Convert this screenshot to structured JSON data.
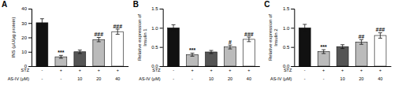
{
  "chart_data": [
    {
      "type": "bar",
      "title": "A",
      "ylabel": "INS (μU/μg protein)",
      "category_levels": [
        "STZ",
        "AS-IV (μM)"
      ],
      "categories": [
        [
          "-",
          "-"
        ],
        [
          "+",
          "-"
        ],
        [
          "+",
          "10"
        ],
        [
          "+",
          "20"
        ],
        [
          "+",
          "40"
        ]
      ],
      "values": [
        30.2,
        6.5,
        10.0,
        18.5,
        24.0
      ],
      "errors": [
        2.8,
        1.0,
        1.2,
        1.5,
        1.8
      ],
      "colors": [
        "#111111",
        "#bbbbbb",
        "#555555",
        "#bbbbbb",
        "#ffffff"
      ],
      "annotations": [
        {
          "text": "***",
          "bar": 1,
          "y": 8.2
        },
        {
          "text": "###",
          "bar": 3,
          "y": 21.0
        },
        {
          "text": "###",
          "bar": 4,
          "y": 26.5
        }
      ],
      "ylim": [
        0,
        40
      ],
      "yticks": [
        0,
        10,
        20,
        30,
        40
      ],
      "grid": false
    },
    {
      "type": "bar",
      "title": "B",
      "ylabel": "Relative expression of\nInsulin 1",
      "category_levels": [
        "STZ",
        "AS-IV (μM)"
      ],
      "categories": [
        [
          "-",
          "-"
        ],
        [
          "+",
          "-"
        ],
        [
          "+",
          "10"
        ],
        [
          "+",
          "20"
        ],
        [
          "+",
          "40"
        ]
      ],
      "values": [
        1.0,
        0.3,
        0.37,
        0.5,
        0.7
      ],
      "errors": [
        0.08,
        0.04,
        0.04,
        0.05,
        0.06
      ],
      "colors": [
        "#111111",
        "#bbbbbb",
        "#555555",
        "#bbbbbb",
        "#ffffff"
      ],
      "annotations": [
        {
          "text": "***",
          "bar": 1,
          "y": 0.37
        },
        {
          "text": "#",
          "bar": 3,
          "y": 0.58
        },
        {
          "text": "###",
          "bar": 4,
          "y": 0.79
        }
      ],
      "ylim": [
        0,
        1.5
      ],
      "yticks": [
        {
          "value": 0,
          "label": "0.0"
        },
        0.5,
        {
          "value": 1,
          "label": "1.0"
        },
        1.5
      ],
      "grid": false
    },
    {
      "type": "bar",
      "title": "C",
      "ylabel": "Relative expression of\nInsulin 2",
      "category_levels": [
        "STZ",
        "AS-IV (μM)"
      ],
      "categories": [
        [
          "-",
          "-"
        ],
        [
          "+",
          "-"
        ],
        [
          "+",
          "10"
        ],
        [
          "+",
          "20"
        ],
        [
          "+",
          "40"
        ]
      ],
      "values": [
        1.0,
        0.38,
        0.51,
        0.63,
        0.8
      ],
      "errors": [
        0.09,
        0.05,
        0.05,
        0.06,
        0.07
      ],
      "colors": [
        "#111111",
        "#bbbbbb",
        "#555555",
        "#bbbbbb",
        "#ffffff"
      ],
      "annotations": [
        {
          "text": "***",
          "bar": 1,
          "y": 0.46
        },
        {
          "text": "##",
          "bar": 3,
          "y": 0.72
        },
        {
          "text": "###",
          "bar": 4,
          "y": 0.9
        }
      ],
      "ylim": [
        0,
        1.5
      ],
      "yticks": [
        {
          "value": 0,
          "label": "0.0"
        },
        0.5,
        {
          "value": 1,
          "label": "1.0"
        },
        1.5
      ],
      "grid": false
    }
  ]
}
